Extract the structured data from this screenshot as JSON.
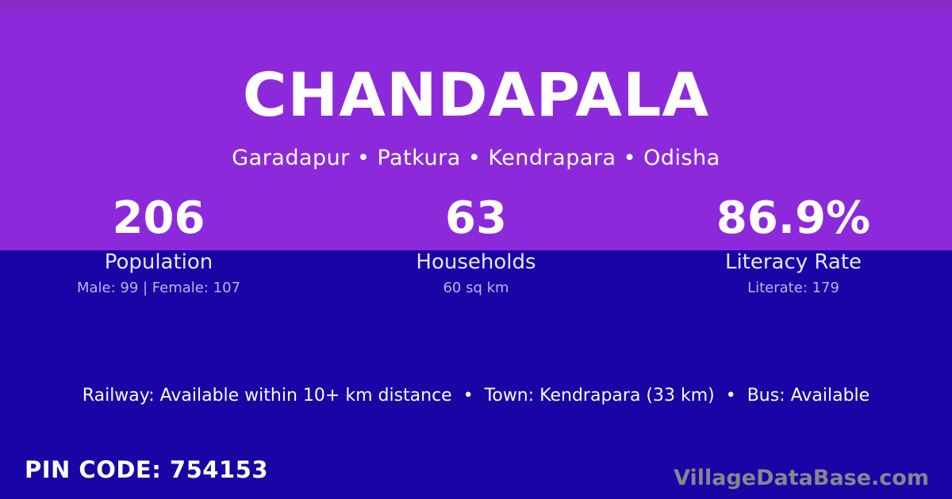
{
  "header": {
    "title": "CHANDAPALA",
    "subtitle": "Garadapur • Patkura • Kendrapara • Odisha",
    "location_parts": [
      "Garadapur",
      "Patkura",
      "Kendrapara",
      "Odisha"
    ]
  },
  "stats": [
    {
      "value": "206",
      "label": "Population",
      "detail": "Male: 99 | Female: 107"
    },
    {
      "value": "63",
      "label": "Households",
      "detail": "60 sq km"
    },
    {
      "value": "86.9%",
      "label": "Literacy Rate",
      "detail": "Literate: 179"
    }
  ],
  "info_line": "Railway: Available within 10+ km distance  •  Town: Kendrapara (33 km)  •  Bus: Available",
  "footer": {
    "pin_code_label": "PIN CODE: 754153",
    "pin_code": "754153",
    "website": "VillageDataBase.com"
  },
  "colors": {
    "purple": "#8C2ADB",
    "purple_dark": "#8629C4",
    "indigo": "#1A04A6",
    "label": "#E9E5F6",
    "detail": "#BDB5E4",
    "watermark": "#87858E"
  }
}
